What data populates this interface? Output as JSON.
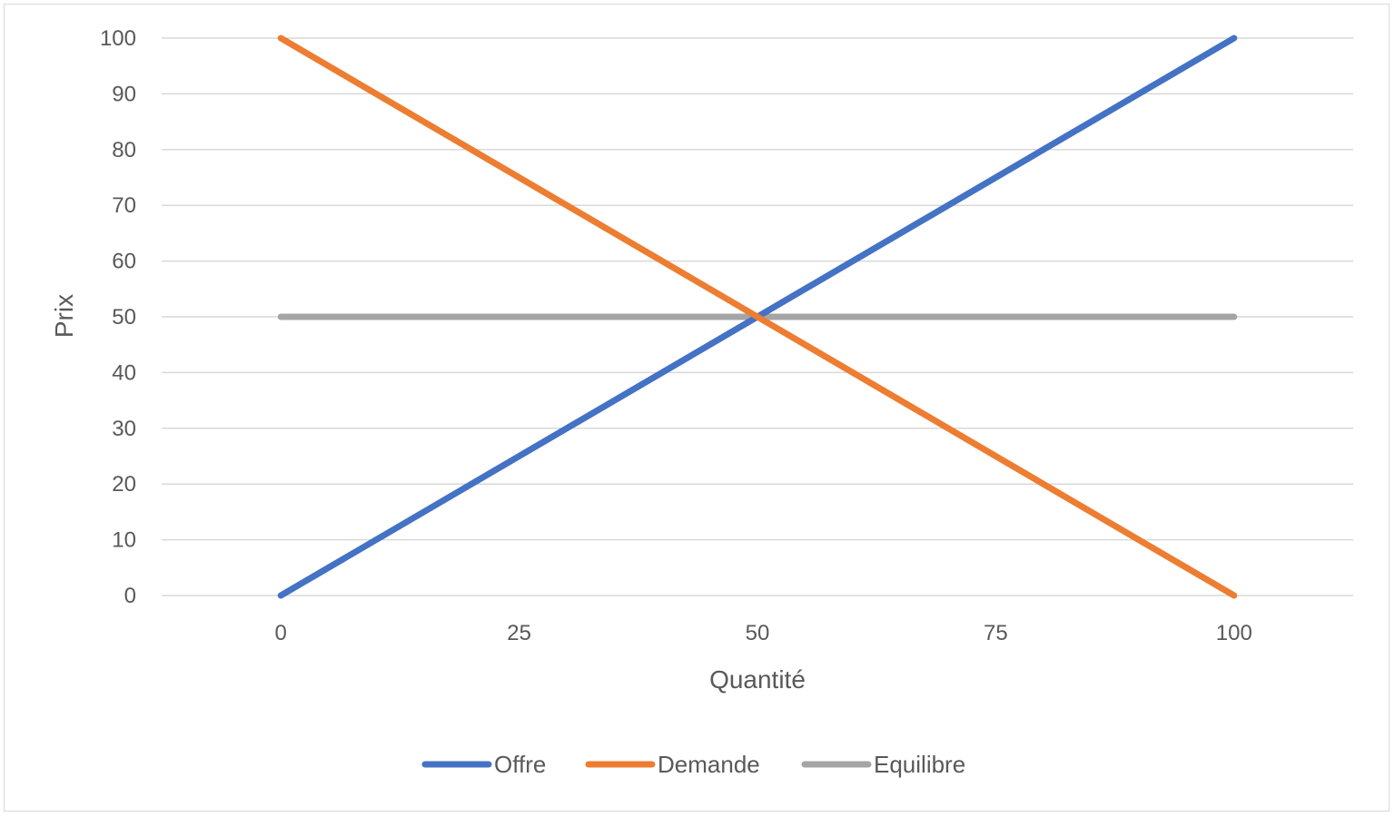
{
  "chart_data": {
    "type": "line",
    "title": "",
    "xlabel": "Quantité",
    "ylabel": "Prix",
    "x": [
      0,
      25,
      50,
      75,
      100
    ],
    "x_tick_labels": [
      "0",
      "25",
      "50",
      "75",
      "100"
    ],
    "y_tick_labels": [
      "0",
      "10",
      "20",
      "30",
      "40",
      "50",
      "60",
      "70",
      "80",
      "90",
      "100"
    ],
    "xlim": [
      -12.5,
      112.5
    ],
    "ylim": [
      0,
      100
    ],
    "grid": true,
    "legend_position": "bottom",
    "series": [
      {
        "name": "Offre",
        "color": "#4472c4",
        "points": [
          [
            0,
            0
          ],
          [
            100,
            100
          ]
        ]
      },
      {
        "name": "Demande",
        "color": "#ed7d31",
        "points": [
          [
            0,
            100
          ],
          [
            100,
            0
          ]
        ]
      },
      {
        "name": "Equilibre",
        "color": "#a5a5a5",
        "points": [
          [
            0,
            50
          ],
          [
            100,
            50
          ]
        ]
      }
    ]
  }
}
